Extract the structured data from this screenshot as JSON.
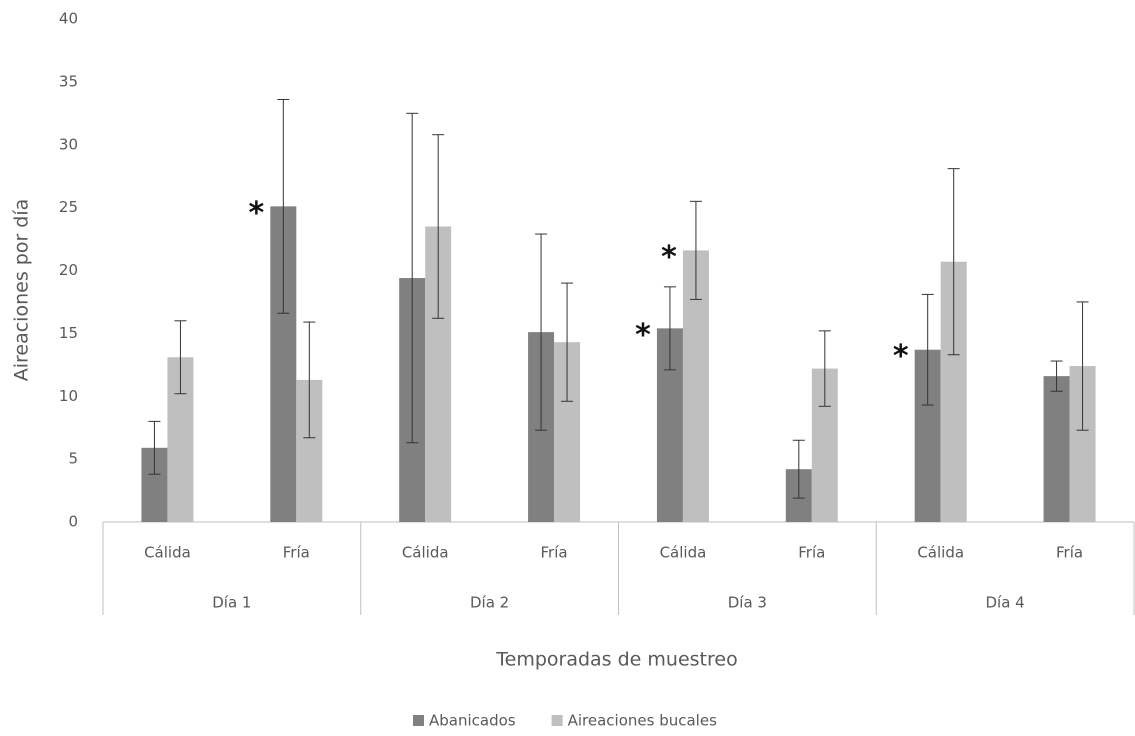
{
  "chart_data": {
    "type": "bar",
    "x_label": "Temporadas de muestreo",
    "y_label": "Aireaciones por día",
    "groups": [
      "Día 1",
      "Día 2",
      "Día 3",
      "Día 4"
    ],
    "categories": [
      "Cálida",
      "Fría",
      "Cálida",
      "Fría",
      "Cálida",
      "Fría",
      "Cálida",
      "Fría"
    ],
    "series": [
      {
        "name": "Abanicados",
        "color": "#808080",
        "values": [
          5.9,
          25.1,
          19.4,
          15.1,
          15.4,
          4.2,
          13.7,
          11.6
        ],
        "errors": [
          2.1,
          8.5,
          13.1,
          7.8,
          3.3,
          2.3,
          4.4,
          1.2
        ]
      },
      {
        "name": "Aireaciones bucales",
        "color": "#bfbfbf",
        "values": [
          13.1,
          11.3,
          23.5,
          14.3,
          21.6,
          12.2,
          20.7,
          12.4
        ],
        "errors": [
          2.9,
          4.6,
          7.3,
          4.7,
          3.9,
          3.0,
          7.4,
          5.1
        ]
      }
    ],
    "annotations": [
      {
        "text": "*",
        "series": "Abanicados",
        "category": 1
      },
      {
        "text": "*",
        "series": "Abanicados",
        "category": 4
      },
      {
        "text": "*",
        "series": "Aireaciones bucales",
        "category": 4
      },
      {
        "text": "*",
        "series": "Abanicados",
        "category": 6
      }
    ],
    "ylim": [
      0,
      40
    ],
    "yticks": [
      0,
      5,
      10,
      15,
      20,
      25,
      30,
      35,
      40
    ],
    "grid": false
  }
}
